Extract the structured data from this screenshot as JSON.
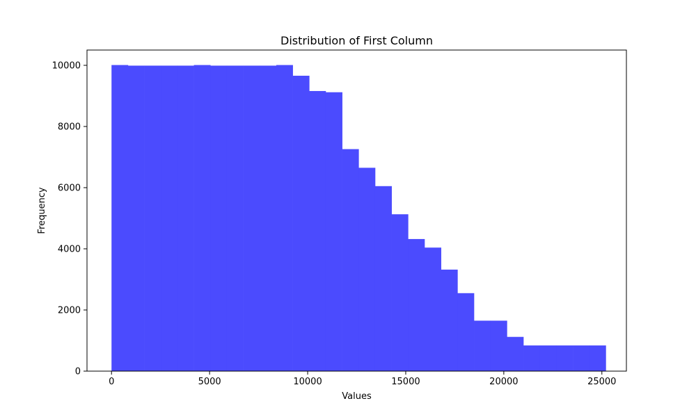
{
  "chart_data": {
    "type": "bar",
    "subtype": "histogram",
    "title": "Distribution of First Column",
    "xlabel": "Values",
    "ylabel": "Frequency",
    "xlim": [
      -1250,
      26250
    ],
    "ylim": [
      0,
      10500
    ],
    "xticks": [
      0,
      5000,
      10000,
      15000,
      20000,
      25000
    ],
    "yticks": [
      0,
      2000,
      4000,
      6000,
      8000,
      10000
    ],
    "bin_edges": [
      0,
      840,
      1680,
      2520,
      3360,
      4200,
      5040,
      5880,
      6720,
      7560,
      8400,
      9240,
      10080,
      10920,
      11760,
      12600,
      13440,
      14280,
      15120,
      15960,
      16800,
      17640,
      18480,
      19320,
      20160,
      21000,
      21840,
      22680,
      23520,
      24360,
      25200
    ],
    "values": [
      10010,
      9990,
      9990,
      9990,
      9990,
      10010,
      9990,
      9990,
      9990,
      9990,
      10010,
      9660,
      9160,
      9120,
      7260,
      6650,
      6050,
      5130,
      4320,
      4040,
      3320,
      2550,
      1650,
      1650,
      1120,
      840,
      840,
      840,
      840,
      840
    ],
    "color": "#4b4bfe",
    "grid": false,
    "legend": "none"
  }
}
